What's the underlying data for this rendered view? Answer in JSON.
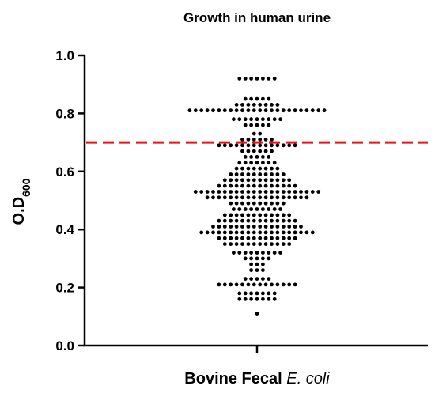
{
  "chart_data": {
    "type": "scatter",
    "title": "Growth in human urine",
    "ylabel": {
      "main": "O.D",
      "subscript": "600"
    },
    "xlabel": {
      "main": "Bovine Fecal ",
      "italic": "E. coli"
    },
    "categories": [
      "Bovine Fecal E. coli"
    ],
    "ylim": [
      0.0,
      1.0
    ],
    "yticks": [
      "0.0",
      "0.2",
      "0.4",
      "0.6",
      "0.8",
      "1.0"
    ],
    "ytick_values": [
      0.0,
      0.2,
      0.4,
      0.6,
      0.8,
      1.0
    ],
    "threshold": {
      "value": 0.7,
      "style": "dashed",
      "color": "#e8141b"
    },
    "point_color": "#000000",
    "series": [
      {
        "category": "Bovine Fecal E. coli",
        "values": [
          0.11,
          0.16,
          0.16,
          0.16,
          0.16,
          0.16,
          0.16,
          0.16,
          0.18,
          0.18,
          0.18,
          0.18,
          0.18,
          0.18,
          0.18,
          0.21,
          0.21,
          0.21,
          0.21,
          0.21,
          0.21,
          0.21,
          0.21,
          0.21,
          0.21,
          0.21,
          0.21,
          0.21,
          0.21,
          0.23,
          0.23,
          0.23,
          0.23,
          0.23,
          0.26,
          0.26,
          0.26,
          0.28,
          0.28,
          0.28,
          0.3,
          0.3,
          0.3,
          0.3,
          0.3,
          0.32,
          0.32,
          0.32,
          0.32,
          0.32,
          0.32,
          0.32,
          0.32,
          0.32,
          0.35,
          0.35,
          0.35,
          0.35,
          0.35,
          0.35,
          0.35,
          0.35,
          0.35,
          0.35,
          0.35,
          0.35,
          0.37,
          0.37,
          0.37,
          0.37,
          0.37,
          0.37,
          0.37,
          0.37,
          0.37,
          0.37,
          0.37,
          0.37,
          0.37,
          0.37,
          0.39,
          0.39,
          0.39,
          0.39,
          0.39,
          0.39,
          0.39,
          0.39,
          0.39,
          0.39,
          0.39,
          0.39,
          0.39,
          0.39,
          0.39,
          0.39,
          0.39,
          0.39,
          0.39,
          0.39,
          0.41,
          0.41,
          0.41,
          0.41,
          0.41,
          0.41,
          0.41,
          0.41,
          0.41,
          0.41,
          0.41,
          0.41,
          0.41,
          0.41,
          0.41,
          0.41,
          0.43,
          0.43,
          0.43,
          0.43,
          0.43,
          0.43,
          0.43,
          0.43,
          0.43,
          0.43,
          0.43,
          0.43,
          0.43,
          0.43,
          0.45,
          0.45,
          0.45,
          0.45,
          0.45,
          0.45,
          0.45,
          0.45,
          0.45,
          0.45,
          0.45,
          0.45,
          0.47,
          0.47,
          0.47,
          0.47,
          0.47,
          0.47,
          0.47,
          0.47,
          0.47,
          0.49,
          0.49,
          0.49,
          0.49,
          0.49,
          0.49,
          0.49,
          0.49,
          0.49,
          0.49,
          0.51,
          0.51,
          0.51,
          0.51,
          0.51,
          0.51,
          0.51,
          0.51,
          0.51,
          0.51,
          0.51,
          0.51,
          0.51,
          0.51,
          0.51,
          0.51,
          0.51,
          0.51,
          0.53,
          0.53,
          0.53,
          0.53,
          0.53,
          0.53,
          0.53,
          0.53,
          0.53,
          0.53,
          0.53,
          0.53,
          0.53,
          0.53,
          0.53,
          0.53,
          0.53,
          0.53,
          0.53,
          0.53,
          0.53,
          0.53,
          0.55,
          0.55,
          0.55,
          0.55,
          0.55,
          0.55,
          0.55,
          0.55,
          0.55,
          0.55,
          0.55,
          0.55,
          0.55,
          0.55,
          0.57,
          0.57,
          0.57,
          0.57,
          0.57,
          0.57,
          0.57,
          0.57,
          0.57,
          0.57,
          0.57,
          0.57,
          0.59,
          0.59,
          0.59,
          0.59,
          0.59,
          0.59,
          0.59,
          0.59,
          0.59,
          0.59,
          0.61,
          0.61,
          0.61,
          0.61,
          0.61,
          0.61,
          0.61,
          0.61,
          0.63,
          0.63,
          0.63,
          0.63,
          0.63,
          0.63,
          0.63,
          0.65,
          0.65,
          0.65,
          0.65,
          0.65,
          0.67,
          0.67,
          0.67,
          0.67,
          0.67,
          0.67,
          0.69,
          0.69,
          0.69,
          0.69,
          0.69,
          0.69,
          0.69,
          0.69,
          0.69,
          0.69,
          0.69,
          0.69,
          0.69,
          0.69,
          0.71,
          0.71,
          0.71,
          0.71,
          0.71,
          0.71,
          0.73,
          0.73,
          0.76,
          0.76,
          0.76,
          0.76,
          0.76,
          0.78,
          0.78,
          0.78,
          0.78,
          0.78,
          0.78,
          0.78,
          0.78,
          0.78,
          0.81,
          0.81,
          0.81,
          0.81,
          0.81,
          0.81,
          0.81,
          0.81,
          0.81,
          0.81,
          0.81,
          0.81,
          0.81,
          0.81,
          0.81,
          0.81,
          0.81,
          0.81,
          0.81,
          0.81,
          0.81,
          0.81,
          0.81,
          0.81,
          0.83,
          0.83,
          0.83,
          0.83,
          0.83,
          0.83,
          0.83,
          0.83,
          0.85,
          0.85,
          0.85,
          0.85,
          0.85,
          0.92,
          0.92,
          0.92,
          0.92,
          0.92,
          0.92,
          0.92
        ]
      }
    ]
  }
}
